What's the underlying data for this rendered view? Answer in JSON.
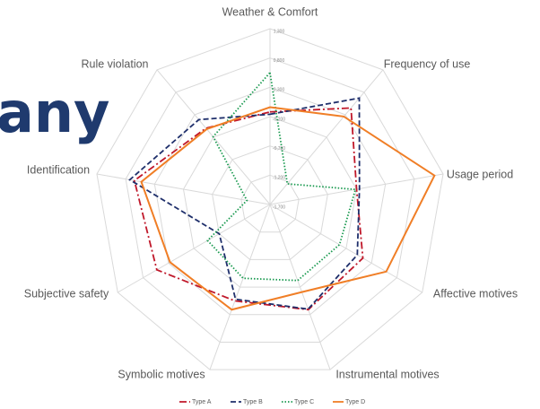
{
  "overlay_text": "any",
  "chart_data": {
    "type": "radar",
    "categories": [
      "Weather & Comfort",
      "Frequency of use",
      "Usage period",
      "Affective motives",
      "Instrumental motives",
      "Symbolic motives",
      "Subjective safety",
      "Identification",
      "Rule violation"
    ],
    "rlim": [
      -1.7,
      1.3
    ],
    "rticks": [
      {
        "value": 1.3,
        "label": "1,300"
      },
      {
        "value": 0.8,
        "label": "0,800"
      },
      {
        "value": 0.3,
        "label": "0,300"
      },
      {
        "value": -0.2,
        "label": "-0,200"
      },
      {
        "value": -0.7,
        "label": "-0,700"
      },
      {
        "value": -1.2,
        "label": "-1,200"
      },
      {
        "value": -1.7,
        "label": "-1,700"
      }
    ],
    "grid": true,
    "legend": "bottom",
    "series": [
      {
        "name": "Type A",
        "color": "#c0182a",
        "values": [
          -0.12,
          0.45,
          -0.2,
          0.13,
          0.21,
          0.05,
          0.53,
          0.65,
          0.0
        ]
      },
      {
        "name": "Type B",
        "color": "#1f2f6b",
        "values": [
          -0.16,
          0.67,
          -0.15,
          0.02,
          0.2,
          0.02,
          -0.7,
          0.73,
          0.19
        ]
      },
      {
        "name": "Type C",
        "color": "#1a9a50",
        "values": [
          0.55,
          -1.24,
          -0.22,
          -0.33,
          -0.32,
          -0.36,
          -0.47,
          -1.3,
          -0.19
        ]
      },
      {
        "name": "Type D",
        "color": "#f07e26",
        "values": [
          -0.04,
          0.26,
          1.15,
          0.59,
          -0.11,
          0.21,
          0.27,
          0.53,
          -0.02
        ]
      }
    ]
  }
}
